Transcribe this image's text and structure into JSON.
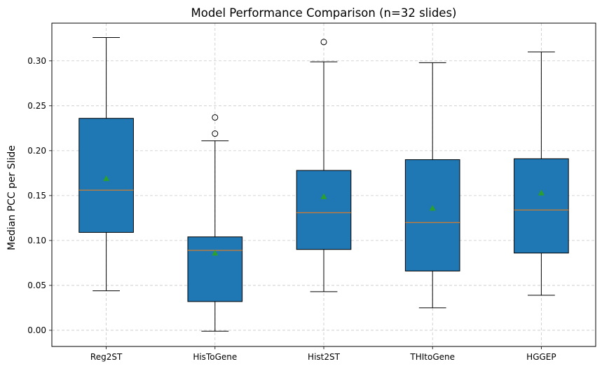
{
  "chart_data": {
    "type": "box",
    "title": "Model Performance Comparison (n=32 slides)",
    "xlabel": "",
    "ylabel": "Median PCC per Slide",
    "ylim": [
      -0.018,
      0.342
    ],
    "yticks": [
      0.0,
      0.05,
      0.1,
      0.15,
      0.2,
      0.25,
      0.3
    ],
    "ytick_labels": [
      "0.00",
      "0.05",
      "0.10",
      "0.15",
      "0.20",
      "0.25",
      "0.30"
    ],
    "grid": true,
    "colors": {
      "box_fill": "#1f77b4",
      "median": "#ff7f0e",
      "mean_marker": "#2ca02c",
      "grid": "#b0b0b0"
    },
    "categories": [
      "Reg2ST",
      "HisToGene",
      "Hist2ST",
      "THItoGene",
      "HGGEP"
    ],
    "boxes": [
      {
        "label": "Reg2ST",
        "whisker_low": 0.044,
        "q1": 0.109,
        "median": 0.156,
        "q3": 0.236,
        "whisker_high": 0.326,
        "mean": 0.169,
        "outliers": []
      },
      {
        "label": "HisToGene",
        "whisker_low": -0.001,
        "q1": 0.032,
        "median": 0.089,
        "q3": 0.104,
        "whisker_high": 0.211,
        "mean": 0.086,
        "outliers": [
          0.219,
          0.237
        ]
      },
      {
        "label": "Hist2ST",
        "whisker_low": 0.043,
        "q1": 0.09,
        "median": 0.131,
        "q3": 0.178,
        "whisker_high": 0.299,
        "mean": 0.149,
        "outliers": [
          0.321
        ]
      },
      {
        "label": "THItoGene",
        "whisker_low": 0.025,
        "q1": 0.066,
        "median": 0.12,
        "q3": 0.19,
        "whisker_high": 0.298,
        "mean": 0.136,
        "outliers": []
      },
      {
        "label": "HGGEP",
        "whisker_low": 0.039,
        "q1": 0.086,
        "median": 0.134,
        "q3": 0.191,
        "whisker_high": 0.31,
        "mean": 0.153,
        "outliers": []
      }
    ]
  }
}
